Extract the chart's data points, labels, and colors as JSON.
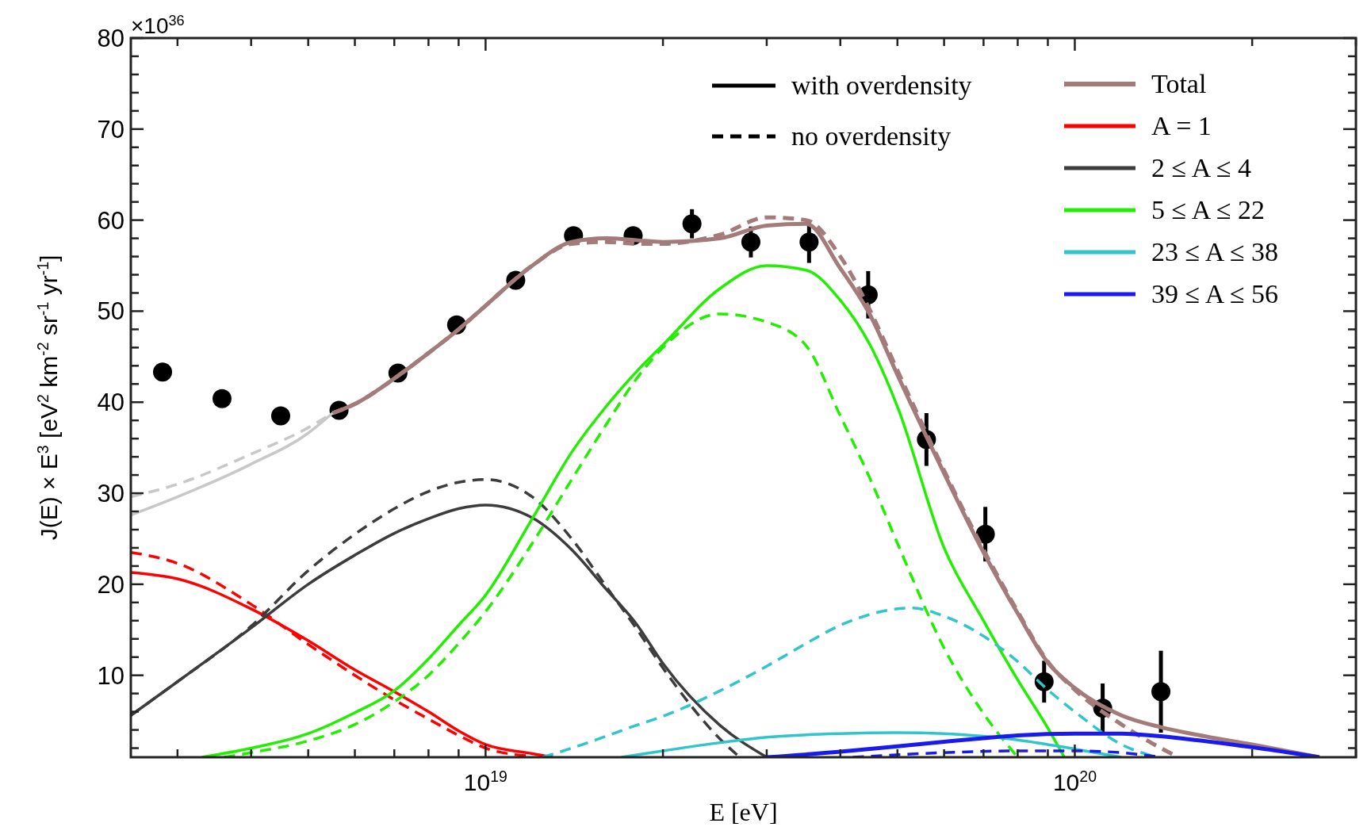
{
  "chart_data": {
    "type": "line",
    "xlabel": "E [eV]",
    "ylabel": "J(E) × E$^{3}$ [eV$^{2}$ km$^{-2}$ sr$^{-1}$ yr$^{-1}$]",
    "annotations": [
      "×10$^{36}$"
    ],
    "log": "x",
    "grid": false,
    "legend": "top right",
    "xlim": [
      2.5e+18,
      3e+20
    ],
    "ylim": [
      1,
      80
    ],
    "xticks": [
      {
        "value": 3e+18,
        "label": null
      },
      {
        "value": 4e+18,
        "label": null
      },
      {
        "value": 5e+18,
        "label": null
      },
      {
        "value": 6e+18,
        "label": null
      },
      {
        "value": 7e+18,
        "label": null
      },
      {
        "value": 8e+18,
        "label": null
      },
      {
        "value": 9e+18,
        "label": null
      },
      {
        "value": 1e+19,
        "label": "10$^{19}$"
      },
      {
        "value": 2e+19,
        "label": null
      },
      {
        "value": 3e+19,
        "label": null
      },
      {
        "value": 4e+19,
        "label": null
      },
      {
        "value": 5e+19,
        "label": null
      },
      {
        "value": 6e+19,
        "label": null
      },
      {
        "value": 7e+19,
        "label": null
      },
      {
        "value": 8e+19,
        "label": null
      },
      {
        "value": 9e+19,
        "label": null
      },
      {
        "value": 1e+20,
        "label": "10$^{20}$"
      },
      {
        "value": 2e+20,
        "label": null
      },
      {
        "value": 3e+20,
        "label": null
      }
    ],
    "yticks": [
      {
        "value": 2,
        "label": null
      },
      {
        "value": 4,
        "label": null
      },
      {
        "value": 6,
        "label": null
      },
      {
        "value": 8,
        "label": null
      },
      10,
      {
        "value": 12,
        "label": null
      },
      {
        "value": 14,
        "label": null
      },
      {
        "value": 16,
        "label": null
      },
      {
        "value": 18,
        "label": null
      },
      20,
      {
        "value": 22,
        "label": null
      },
      {
        "value": 24,
        "label": null
      },
      {
        "value": 26,
        "label": null
      },
      {
        "value": 28,
        "label": null
      },
      30,
      {
        "value": 32,
        "label": null
      },
      {
        "value": 34,
        "label": null
      },
      {
        "value": 36,
        "label": null
      },
      {
        "value": 38,
        "label": null
      },
      40,
      {
        "value": 42,
        "label": null
      },
      {
        "value": 44,
        "label": null
      },
      {
        "value": 46,
        "label": null
      },
      {
        "value": 48,
        "label": null
      },
      50,
      {
        "value": 52,
        "label": null
      },
      {
        "value": 54,
        "label": null
      },
      {
        "value": 56,
        "label": null
      },
      {
        "value": 58,
        "label": null
      },
      60,
      {
        "value": 62,
        "label": null
      },
      {
        "value": 64,
        "label": null
      },
      {
        "value": 66,
        "label": null
      },
      {
        "value": 68,
        "label": null
      },
      70,
      {
        "value": 72,
        "label": null
      },
      {
        "value": 74,
        "label": null
      },
      {
        "value": 76,
        "label": null
      },
      {
        "value": 78,
        "label": null
      },
      80
    ],
    "series": [
      {
        "name": "with overdensity",
        "color": "#000000",
        "line_style": "solid"
      },
      {
        "name": "no overdensity",
        "color": "#000000",
        "line_style": "dashed"
      },
      {
        "color": "#a47b7b",
        "line_style": "dashed",
        "x": [
          5.5e+18,
          6e+18,
          7e+18,
          8e+18,
          9e+18,
          1e+19,
          1.2e+19,
          1.4e+19,
          1.6e+19,
          1.8e+19,
          2e+19,
          2.5e+19,
          3e+19,
          3.5e+19,
          4e+19,
          4.5e+19,
          5e+19,
          6e+19,
          7e+19,
          8e+19,
          9e+19,
          1e+20,
          1.2e+20,
          1.4e+20,
          1.5e+20
        ],
        "values": [
          38.8,
          39.8,
          42.6,
          45.4,
          48.0,
          50.6,
          55.0,
          57.4,
          57.6,
          57.4,
          57.4,
          58.4,
          60.3,
          60.0,
          56.0,
          50.0,
          43.5,
          32.5,
          23.8,
          17.0,
          11.5,
          8.4,
          4.6,
          2.0,
          1.0
        ]
      },
      {
        "name": "Total",
        "color": "#a47b7b",
        "line_style": "solid",
        "x": [
          5.5e+18,
          6e+18,
          7e+18,
          8e+18,
          9e+18,
          1e+19,
          1.2e+19,
          1.4e+19,
          1.6e+19,
          1.8e+19,
          2e+19,
          2.5e+19,
          3e+19,
          3.5e+19,
          4e+19,
          4.5e+19,
          5e+19,
          6e+19,
          7e+19,
          8e+19,
          9e+19,
          1e+20,
          1.2e+20,
          1.4e+20,
          1.6e+20,
          2e+20,
          2.6e+20
        ],
        "values": [
          38.8,
          39.8,
          42.6,
          45.4,
          48.0,
          50.6,
          55.0,
          57.6,
          58.0,
          57.8,
          57.6,
          58.0,
          59.4,
          59.6,
          54.7,
          49.5,
          43.0,
          32.2,
          23.5,
          16.8,
          11.4,
          8.6,
          5.6,
          4.3,
          3.5,
          2.4,
          1.0
        ]
      },
      {
        "color": "#c8c8c8",
        "line_style": "dashed",
        "x": [
          2.5e+18,
          3e+18,
          4e+18,
          5e+18,
          5.5e+18
        ],
        "values": [
          29.6,
          31.0,
          34.3,
          37.2,
          38.8
        ]
      },
      {
        "color": "#c8c8c8",
        "line_style": "solid",
        "x": [
          2.5e+18,
          3e+18,
          4e+18,
          5e+18,
          5.5e+18
        ],
        "values": [
          27.6,
          29.6,
          33.2,
          36.6,
          38.8
        ]
      },
      {
        "color": "#ff0000",
        "line_style": "dashed",
        "x": [
          2.5e+18,
          3e+18,
          4e+18,
          5e+18,
          6e+18,
          7e+18,
          8e+18,
          9e+18,
          1e+19,
          1.2e+19
        ],
        "values": [
          23.5,
          22.3,
          17.8,
          13.4,
          10.0,
          7.3,
          5.2,
          3.4,
          2.0,
          1.1
        ]
      },
      {
        "name": "A = 1",
        "color": "#ff0000",
        "line_style": "solid",
        "x": [
          2.5e+18,
          3e+18,
          4e+18,
          5e+18,
          6e+18,
          7e+18,
          8e+18,
          9e+18,
          1e+19,
          1.2e+19,
          1.3e+19
        ],
        "values": [
          21.3,
          20.6,
          17.3,
          13.8,
          10.6,
          8.2,
          6.0,
          3.9,
          2.4,
          1.4,
          1.0
        ]
      },
      {
        "color": "#3c3c3c",
        "line_style": "dashed",
        "x": [
          2.5e+18,
          3e+18,
          4e+18,
          5e+18,
          6e+18,
          7e+18,
          8e+18,
          9e+18,
          1e+19,
          1.2e+19,
          1.4e+19,
          1.6e+19,
          1.8e+19,
          2e+19,
          2.5e+19,
          2.7e+19
        ],
        "values": [
          5.6,
          9.3,
          15.4,
          21.5,
          25.5,
          28.3,
          30.2,
          31.2,
          31.5,
          29.6,
          25.0,
          19.8,
          15.2,
          10.8,
          3.0,
          1.0
        ]
      },
      {
        "name": "2 ≤ A ≤ 4",
        "color": "#3c3c3c",
        "line_style": "solid",
        "x": [
          2.5e+18,
          3e+18,
          4e+18,
          5e+18,
          6e+18,
          7e+18,
          8e+18,
          9e+18,
          1e+19,
          1.2e+19,
          1.4e+19,
          1.6e+19,
          1.8e+19,
          2e+19,
          2.5e+19,
          3e+19
        ],
        "values": [
          5.6,
          9.3,
          15.2,
          20.0,
          23.2,
          25.6,
          27.2,
          28.3,
          28.7,
          27.3,
          23.8,
          19.5,
          15.7,
          11.3,
          4.5,
          1.0
        ]
      },
      {
        "color": "#22ee00",
        "line_style": "dashed",
        "x": [
          3.6e+18,
          4e+18,
          5e+18,
          6e+18,
          7e+18,
          8e+18,
          9e+18,
          1e+19,
          1.2e+19,
          1.4e+19,
          1.6e+19,
          1.8e+19,
          2e+19,
          2.5e+19,
          3e+19,
          3.5e+19,
          4e+19,
          4.5e+19,
          5e+19,
          6e+19,
          7e+19,
          8e+19
        ],
        "values": [
          1.0,
          1.5,
          2.8,
          4.6,
          7.1,
          10.0,
          13.5,
          17.0,
          24.5,
          31.5,
          37.5,
          42.5,
          46.0,
          49.7,
          48.8,
          46.2,
          38.5,
          31.5,
          24.5,
          13.0,
          5.8,
          1.0
        ]
      },
      {
        "name": "5 ≤ A ≤ 22",
        "color": "#22ee00",
        "line_style": "solid",
        "x": [
          3.3e+18,
          4e+18,
          5e+18,
          6e+18,
          7e+18,
          8e+18,
          9e+18,
          1e+19,
          1.2e+19,
          1.4e+19,
          1.6e+19,
          1.8e+19,
          2e+19,
          2.5e+19,
          3e+19,
          3.5e+19,
          4e+19,
          4.5e+19,
          5e+19,
          6e+19,
          7e+19,
          8e+19,
          9e+19,
          9.6e+19
        ],
        "values": [
          1.0,
          2.0,
          3.6,
          5.9,
          8.3,
          11.8,
          15.5,
          18.8,
          27.2,
          34.5,
          39.5,
          43.3,
          46.3,
          52.5,
          55.0,
          54.5,
          51.2,
          46.2,
          39.5,
          24.0,
          16.0,
          9.5,
          4.2,
          1.0
        ]
      },
      {
        "color": "#30c4cc",
        "line_style": "dashed",
        "x": [
          1.25e+19,
          1.4e+19,
          1.6e+19,
          1.8e+19,
          2e+19,
          2.5e+19,
          3e+19,
          3.5e+19,
          4e+19,
          4.5e+19,
          5e+19,
          5.3e+19,
          6e+19,
          7e+19,
          8e+19,
          9e+19,
          1e+20,
          1.2e+20,
          1.38e+20
        ],
        "values": [
          1.0,
          2.0,
          3.3,
          4.5,
          5.5,
          8.3,
          11.0,
          13.5,
          15.5,
          16.7,
          17.3,
          17.4,
          16.5,
          14.3,
          11.5,
          8.4,
          6.0,
          2.4,
          1.0
        ]
      },
      {
        "name": "23 ≤ A ≤ 38",
        "color": "#30c4cc",
        "line_style": "solid",
        "x": [
          1.7e+19,
          2e+19,
          2.5e+19,
          3e+19,
          4e+19,
          5e+19,
          6e+19,
          7e+19,
          8e+19,
          1e+20,
          1.2e+20
        ],
        "values": [
          1.0,
          1.7,
          2.6,
          3.2,
          3.6,
          3.7,
          3.6,
          3.3,
          2.9,
          1.9,
          1.0
        ]
      },
      {
        "color": "#1a1aee",
        "line_style": "dashed",
        "x": [
          4.2e+19,
          6e+19,
          8e+19,
          1e+20,
          1.2e+20,
          1.4e+20
        ],
        "values": [
          1.0,
          1.5,
          1.7,
          1.7,
          1.5,
          1.0
        ]
      },
      {
        "name": "39 ≤ A ≤ 56",
        "color": "#1a1aee",
        "line_style": "solid",
        "x": [
          3e+19,
          4e+19,
          5e+19,
          6e+19,
          7e+19,
          8e+19,
          1e+20,
          1.2e+20,
          1.4e+20,
          1.6e+20,
          2e+20,
          2.6e+20
        ],
        "values": [
          1.0,
          1.6,
          2.2,
          2.7,
          3.1,
          3.4,
          3.6,
          3.6,
          3.3,
          2.9,
          2.1,
          1.0
        ]
      },
      {
        "type": "scatter",
        "color": "#000000",
        "marker": "circle",
        "x": [
          2.83e+18,
          3.57e+18,
          4.49e+18,
          5.64e+18,
          7.1e+18,
          8.93e+18,
          1.125e+19,
          1.41e+19,
          1.78e+19,
          2.24e+19,
          2.82e+19,
          3.54e+19,
          4.46e+19,
          5.6e+19,
          7.05e+19,
          8.87e+19,
          1.115e+20,
          1.4e+20
        ],
        "values": [
          43.3,
          40.4,
          38.5,
          39.1,
          43.2,
          48.5,
          53.4,
          58.3,
          58.3,
          59.6,
          57.6,
          57.6,
          51.8,
          35.9,
          25.5,
          9.3,
          6.4,
          8.2
        ],
        "errors": [
          null,
          null,
          null,
          null,
          null,
          null,
          null,
          null,
          null,
          1.6,
          1.7,
          2.3,
          2.6,
          2.9,
          3.0,
          2.3,
          2.7,
          4.5
        ]
      }
    ]
  }
}
